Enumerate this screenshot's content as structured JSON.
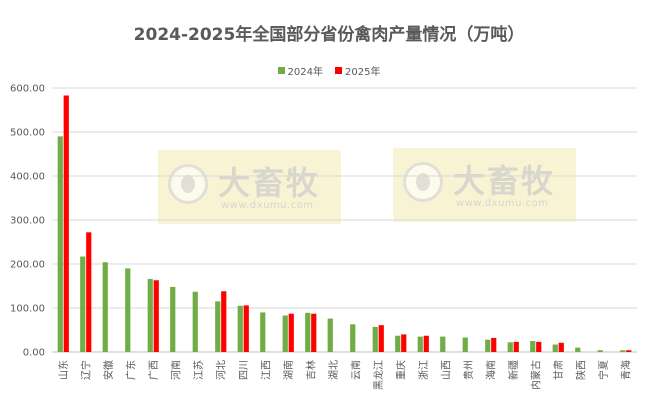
{
  "chart_data": {
    "type": "bar",
    "title": "2024-2025年全国部分省份禽肉产量情况（万吨）",
    "categories": [
      "山东",
      "辽宁",
      "安徽",
      "广东",
      "广西",
      "河南",
      "江苏",
      "河北",
      "四川",
      "江西",
      "湖南",
      "吉林",
      "湖北",
      "云南",
      "黑龙江",
      "重庆",
      "浙江",
      "山西",
      "贵州",
      "海南",
      "新疆",
      "内蒙古",
      "甘肃",
      "陕西",
      "宁夏",
      "青海"
    ],
    "series": [
      {
        "name": "2024年",
        "color": "#70ad47",
        "values": [
          490,
          217,
          204,
          190,
          166,
          148,
          137,
          115,
          105,
          90,
          83,
          89,
          76,
          63,
          57,
          37,
          35,
          35,
          33,
          28,
          22,
          25,
          17,
          10,
          4,
          4
        ]
      },
      {
        "name": "2025年",
        "color": "#ff0000",
        "values": [
          583,
          272,
          null,
          null,
          163,
          null,
          null,
          138,
          106,
          null,
          87,
          87,
          null,
          null,
          61,
          40,
          37,
          null,
          null,
          32,
          23,
          23,
          21,
          null,
          null,
          4
        ]
      }
    ],
    "ylim": [
      0,
      600
    ],
    "yticks": [
      "0.00",
      "100.00",
      "200.00",
      "300.00",
      "400.00",
      "500.00",
      "600.00"
    ],
    "grid": true,
    "legend_position": "top"
  },
  "watermark": {
    "name": "大畜牧",
    "url": "www.dxumu.com"
  }
}
